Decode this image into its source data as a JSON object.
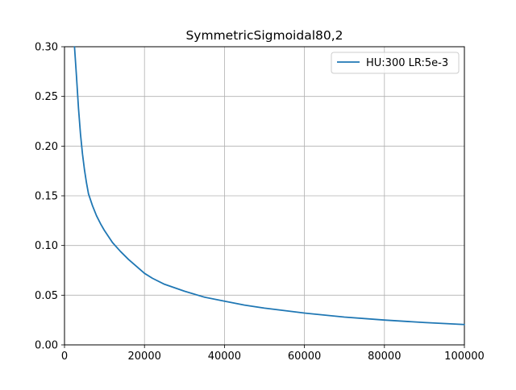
{
  "chart_data": {
    "type": "line",
    "title": "SymmetricSigmoidal80,2",
    "xlabel": "",
    "ylabel": "",
    "xlim": [
      0,
      100000
    ],
    "ylim": [
      0,
      0.3
    ],
    "grid": true,
    "legend_position": "top-right",
    "x_ticks": [
      0,
      20000,
      40000,
      60000,
      80000,
      100000
    ],
    "x_tick_labels": [
      "0",
      "20000",
      "40000",
      "60000",
      "80000",
      "100000"
    ],
    "y_ticks": [
      0,
      0.05,
      0.1,
      0.15,
      0.2,
      0.25,
      0.3
    ],
    "y_tick_labels": [
      "0.00",
      "0.05",
      "0.10",
      "0.15",
      "0.20",
      "0.25",
      "0.30"
    ],
    "series": [
      {
        "name": "HU:300 LR:5e-3",
        "color": "#1f77b4",
        "x": [
          2500,
          3000,
          3500,
          4000,
          4500,
          5000,
          5500,
          6000,
          7000,
          8000,
          9000,
          10000,
          12000,
          14000,
          16000,
          18000,
          20000,
          22000,
          25000,
          30000,
          35000,
          40000,
          45000,
          50000,
          60000,
          70000,
          80000,
          90000,
          100000
        ],
        "y": [
          0.3,
          0.27,
          0.238,
          0.212,
          0.192,
          0.176,
          0.163,
          0.152,
          0.14,
          0.13,
          0.122,
          0.115,
          0.103,
          0.094,
          0.086,
          0.079,
          0.072,
          0.067,
          0.061,
          0.054,
          0.048,
          0.044,
          0.04,
          0.037,
          0.032,
          0.028,
          0.025,
          0.0225,
          0.0205
        ]
      }
    ]
  }
}
